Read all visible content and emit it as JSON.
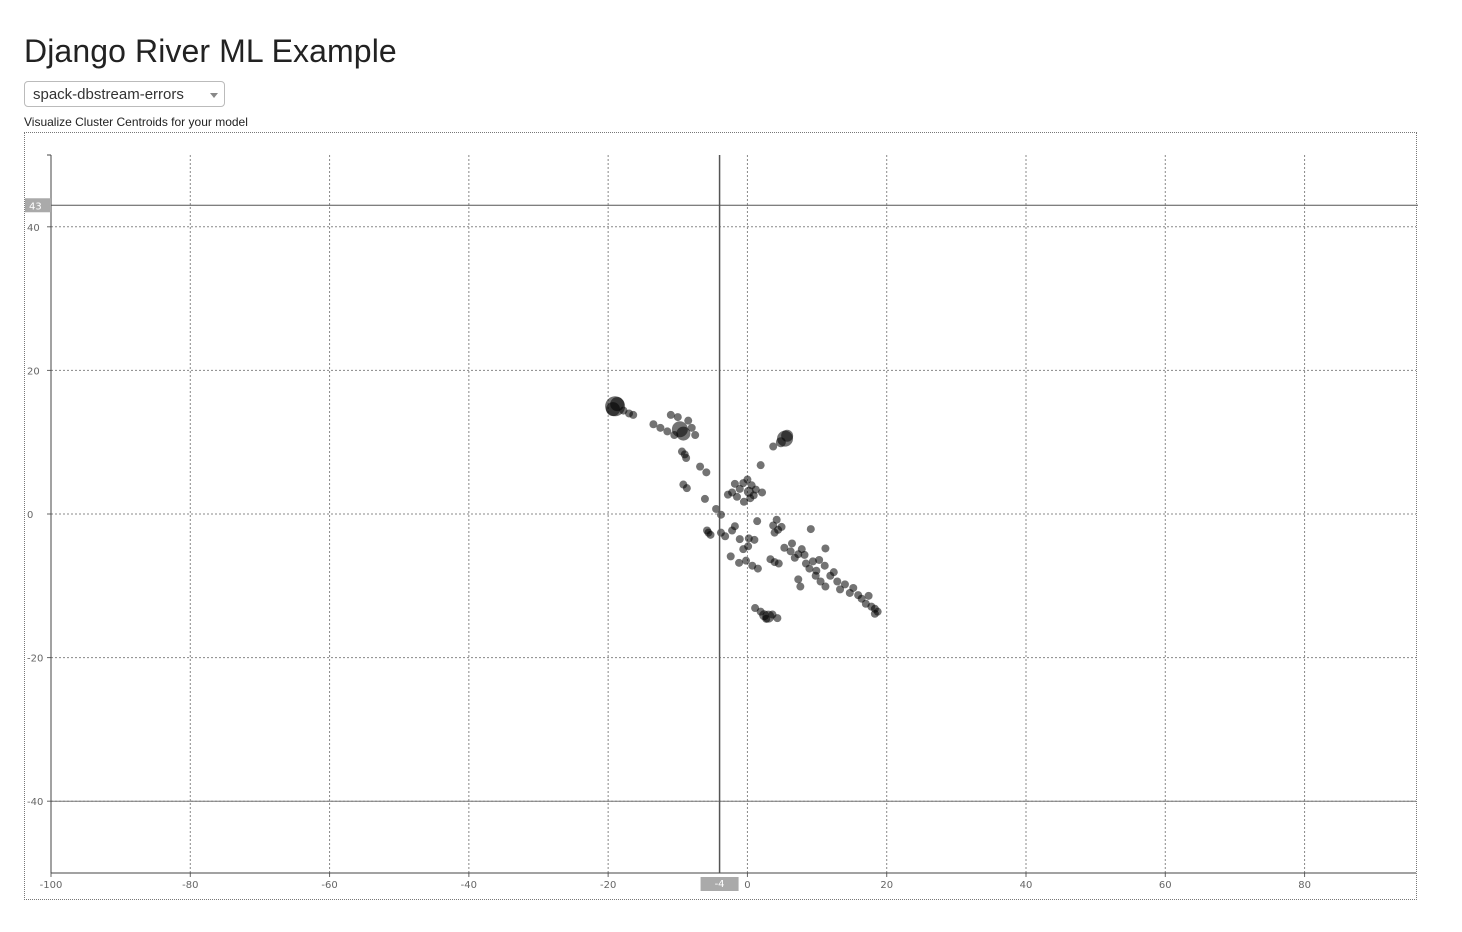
{
  "page": {
    "title": "Django River ML Example",
    "model_select": {
      "value": "spack-dbstream-errors"
    },
    "caption": "Visualize Cluster Centroids for your model"
  },
  "chart_data": {
    "type": "scatter",
    "title": "",
    "xlabel": "",
    "ylabel": "",
    "xlim": [
      -100,
      96
    ],
    "ylim": [
      -50,
      50
    ],
    "x_ticks": [
      "-100",
      "-80",
      "-60",
      "-40",
      "-20",
      "0",
      "20",
      "40",
      "60",
      "80"
    ],
    "y_ticks": [
      "40",
      "20",
      "0",
      "-20",
      "-40"
    ],
    "grid": true,
    "crosshair": {
      "x": -4,
      "y": 43,
      "x_label": "-4",
      "y_label": "43"
    },
    "hline_at": -40,
    "point_color": "#000000",
    "point_opacity": 0.55,
    "points": [
      [
        -19,
        15,
        10
      ],
      [
        -18.7,
        15.3,
        7
      ],
      [
        -19.3,
        14.6,
        7
      ],
      [
        -17.8,
        14.4,
        4
      ],
      [
        -17,
        14,
        4
      ],
      [
        -16.4,
        13.8,
        4
      ],
      [
        -10,
        13.5,
        4
      ],
      [
        -9.7,
        11.8,
        8
      ],
      [
        -9.2,
        11.2,
        7
      ],
      [
        -10.5,
        11,
        4
      ],
      [
        -11.5,
        11.5,
        4
      ],
      [
        -12.5,
        12,
        4
      ],
      [
        -13.5,
        12.5,
        4
      ],
      [
        -8.5,
        13,
        4
      ],
      [
        -8,
        12,
        4
      ],
      [
        -7.5,
        11,
        4
      ],
      [
        -11,
        13.8,
        4
      ],
      [
        -9.4,
        8.7,
        4
      ],
      [
        -9,
        8.3,
        4
      ],
      [
        -8.8,
        7.8,
        4
      ],
      [
        -6.8,
        6.6,
        4
      ],
      [
        -5.9,
        5.8,
        4
      ],
      [
        -9.2,
        4.1,
        4
      ],
      [
        -8.7,
        3.6,
        4
      ],
      [
        5.4,
        10.5,
        8
      ],
      [
        5.7,
        10.9,
        6
      ],
      [
        4.8,
        10,
        5
      ],
      [
        3.7,
        9.4,
        4
      ],
      [
        1.9,
        6.8,
        4
      ],
      [
        -6.1,
        2.1,
        4
      ],
      [
        -4.5,
        0.7,
        4
      ],
      [
        -3.8,
        -0.1,
        4
      ],
      [
        -2.8,
        2.7,
        4
      ],
      [
        -2.2,
        3.0,
        4
      ],
      [
        -1.8,
        4.2,
        4
      ],
      [
        -1.1,
        3.5,
        4
      ],
      [
        -1.5,
        2.4,
        4
      ],
      [
        -0.6,
        4.3,
        4
      ],
      [
        0,
        4.8,
        4
      ],
      [
        0.6,
        4.0,
        4
      ],
      [
        1.2,
        3.4,
        4
      ],
      [
        0.2,
        3.1,
        5
      ],
      [
        0.9,
        2.6,
        4
      ],
      [
        2.1,
        3.0,
        4
      ],
      [
        -0.5,
        1.7,
        4
      ],
      [
        0.4,
        2.2,
        4
      ],
      [
        1.4,
        -1,
        4
      ],
      [
        3.7,
        -1.6,
        4
      ],
      [
        4.4,
        -2.2,
        4
      ],
      [
        4.2,
        -0.8,
        4
      ],
      [
        4.9,
        -1.8,
        4
      ],
      [
        3.9,
        -2.6,
        4
      ],
      [
        9.1,
        -2.1,
        4
      ],
      [
        11.2,
        -4.8,
        4
      ],
      [
        -2.2,
        -2.3,
        4
      ],
      [
        -1.8,
        -1.7,
        4
      ],
      [
        -1.1,
        -3.5,
        4
      ],
      [
        -0.6,
        -4.9,
        4
      ],
      [
        0.2,
        -3.4,
        4
      ],
      [
        1,
        -3.6,
        4
      ],
      [
        0.1,
        -4.5,
        4
      ],
      [
        -3.8,
        -2.6,
        4
      ],
      [
        -3.2,
        -3.1,
        4
      ],
      [
        -5.8,
        -2.3,
        4
      ],
      [
        -5.3,
        -2.9,
        4
      ],
      [
        -5.6,
        -2.6,
        4
      ],
      [
        -2.4,
        -5.9,
        4
      ],
      [
        -1.2,
        -6.8,
        4
      ],
      [
        -0.2,
        -6.5,
        4
      ],
      [
        0.7,
        -7.2,
        4
      ],
      [
        1.5,
        -7.6,
        4
      ],
      [
        3.3,
        -6.3,
        4
      ],
      [
        3.9,
        -6.7,
        4
      ],
      [
        4.5,
        -6.9,
        4
      ],
      [
        5.3,
        -4.7,
        4
      ],
      [
        6.2,
        -5.2,
        4
      ],
      [
        6.8,
        -6.1,
        4
      ],
      [
        6.4,
        -4.1,
        4
      ],
      [
        7.3,
        -5.6,
        4
      ],
      [
        7.8,
        -4.9,
        4
      ],
      [
        8.4,
        -6.9,
        4
      ],
      [
        8.9,
        -7.6,
        4
      ],
      [
        9.4,
        -6.6,
        4
      ],
      [
        9.9,
        -7.9,
        4
      ],
      [
        7.3,
        -9.1,
        4
      ],
      [
        7.6,
        -10.1,
        4
      ],
      [
        9.8,
        -8.6,
        4
      ],
      [
        10.5,
        -9.4,
        4
      ],
      [
        11.2,
        -10.1,
        4
      ],
      [
        11.9,
        -8.6,
        4
      ],
      [
        12.4,
        -8.1,
        4
      ],
      [
        12.9,
        -9.4,
        4
      ],
      [
        13.3,
        -10.5,
        4
      ],
      [
        14,
        -9.8,
        4
      ],
      [
        14.7,
        -11,
        4
      ],
      [
        15.2,
        -10.3,
        4
      ],
      [
        15.9,
        -11.3,
        4
      ],
      [
        16.4,
        -11.8,
        4
      ],
      [
        17,
        -12.5,
        4
      ],
      [
        17.4,
        -11.4,
        4
      ],
      [
        17.8,
        -12.9,
        4
      ],
      [
        18.3,
        -13.2,
        4
      ],
      [
        18.7,
        -13.6,
        4
      ],
      [
        18.3,
        -13.9,
        4
      ],
      [
        1.1,
        -13.1,
        4
      ],
      [
        1.9,
        -13.6,
        4
      ],
      [
        2.4,
        -14.1,
        5
      ],
      [
        3.0,
        -14.3,
        6
      ],
      [
        2.7,
        -14.6,
        4
      ],
      [
        3.6,
        -14.0,
        4
      ],
      [
        4.3,
        -14.5,
        4
      ],
      [
        8.2,
        -5.7,
        4
      ],
      [
        10.3,
        -6.4,
        4
      ],
      [
        11.1,
        -7.2,
        4
      ]
    ]
  }
}
